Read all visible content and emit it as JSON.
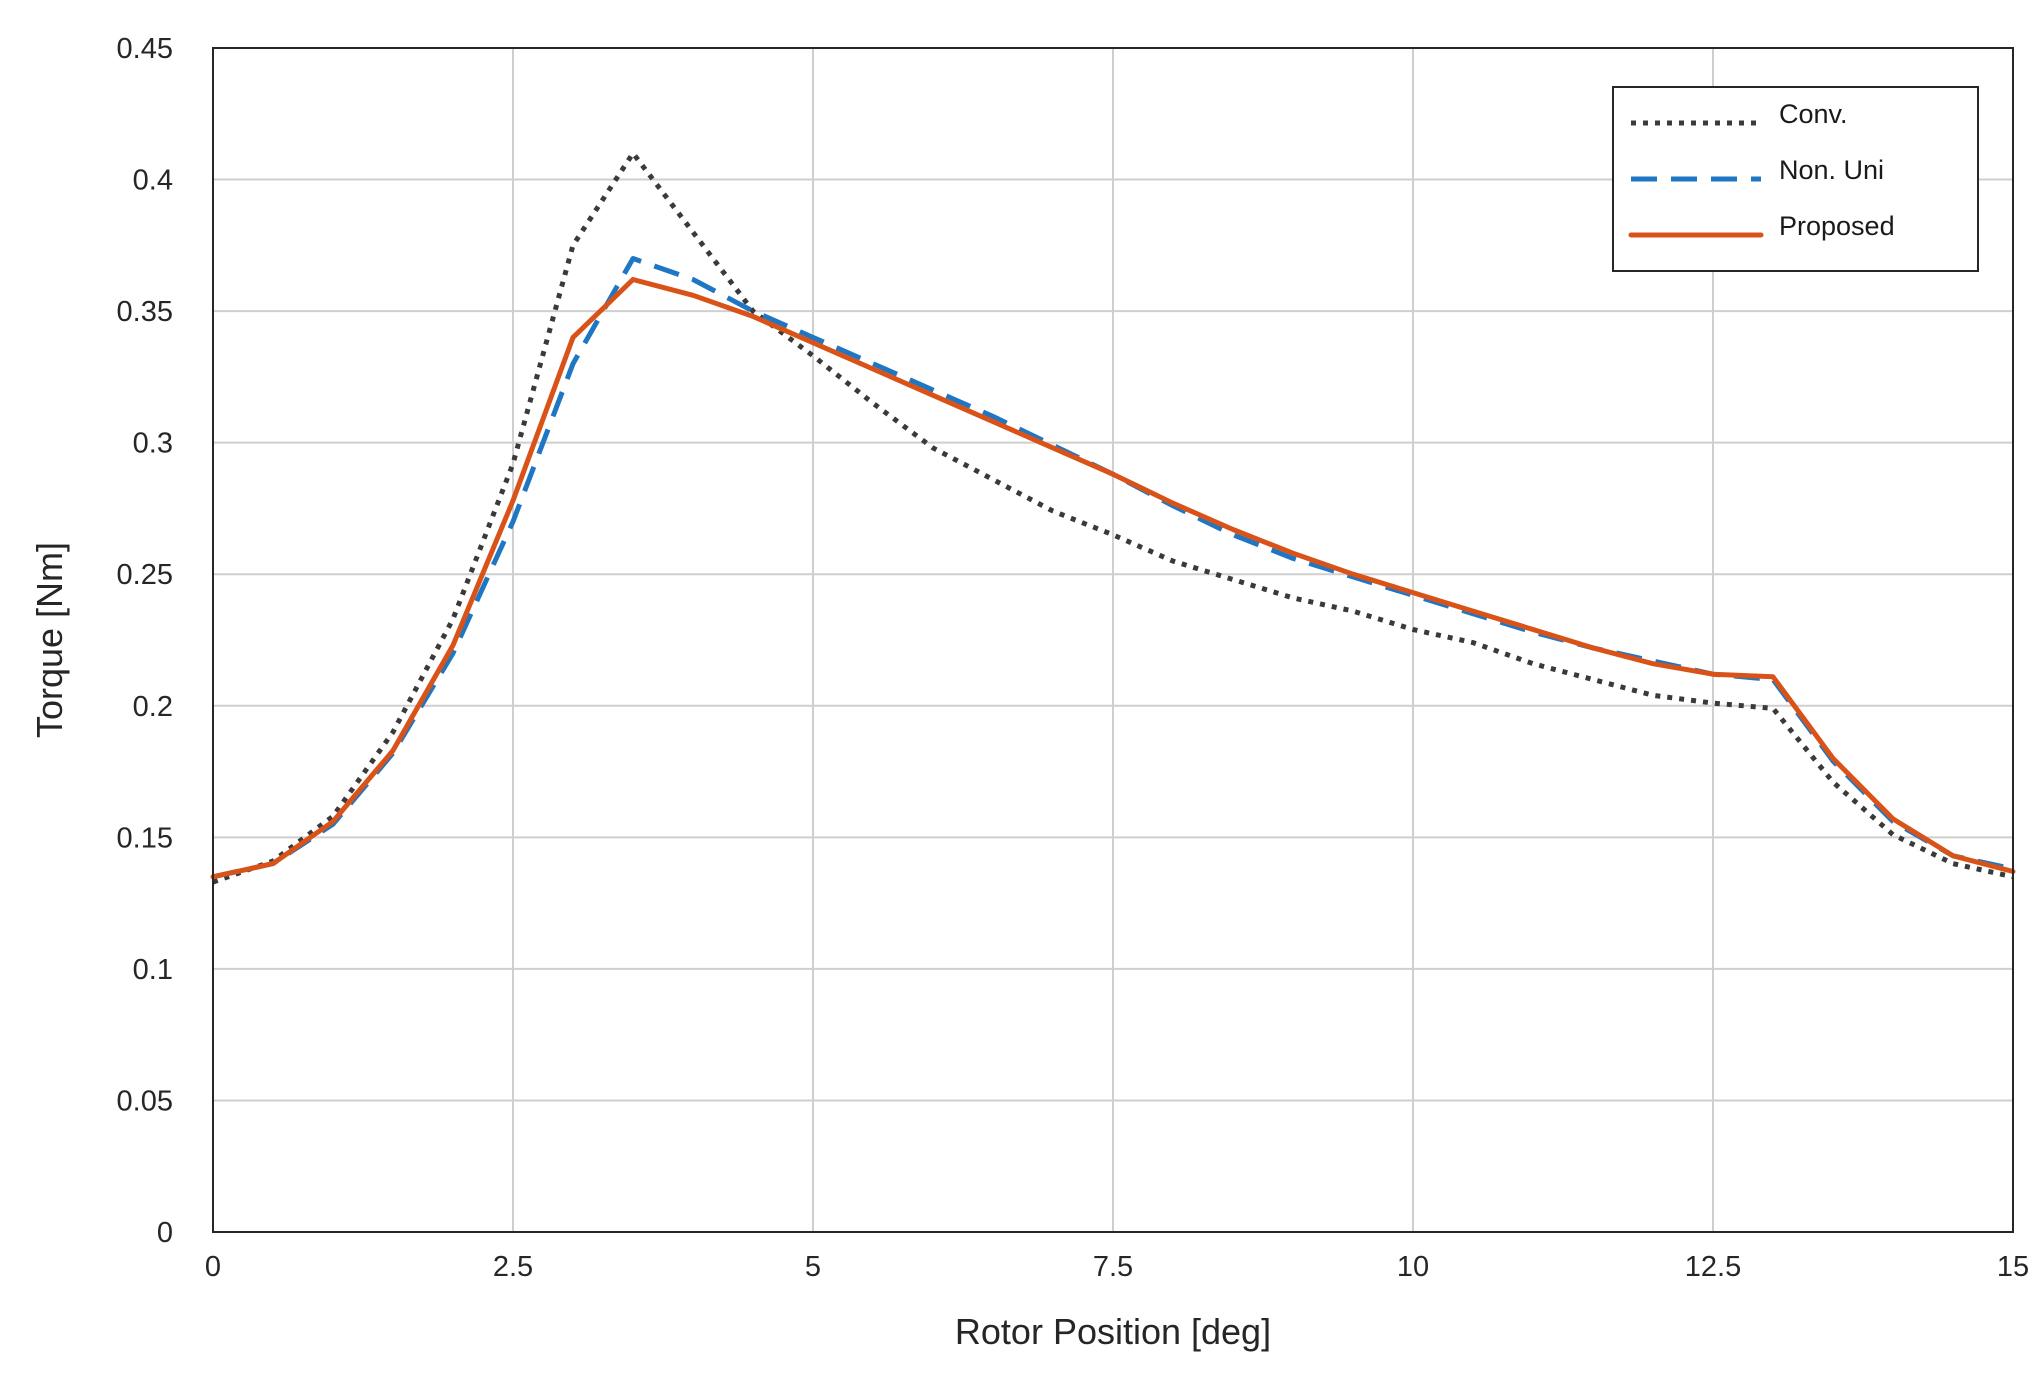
{
  "chart_data": {
    "type": "line",
    "title": "",
    "xlabel": "Rotor Position [deg]",
    "ylabel": "Torque [Nm]",
    "xlim": [
      0,
      15
    ],
    "ylim": [
      0,
      0.45
    ],
    "xticks": [
      0,
      2.5,
      5,
      7.5,
      10,
      12.5,
      15
    ],
    "xtick_labels": [
      "0",
      "2.5",
      "5",
      "7.5",
      "10",
      "12.5",
      "15"
    ],
    "yticks": [
      0,
      0.05,
      0.1,
      0.15,
      0.2,
      0.25,
      0.3,
      0.35,
      0.4,
      0.45
    ],
    "ytick_labels": [
      "0",
      "0.05",
      "0.1",
      "0.15",
      "0.2",
      "0.25",
      "0.3",
      "0.35",
      "0.4",
      "0.45"
    ],
    "grid": true,
    "legend_position": "top-right",
    "x": [
      0,
      0.5,
      1,
      1.5,
      2,
      2.5,
      3,
      3.5,
      4,
      4.5,
      5,
      5.5,
      6,
      6.5,
      7,
      7.5,
      8,
      8.5,
      9,
      9.5,
      10,
      10.5,
      11,
      11.5,
      12,
      12.5,
      13,
      13.5,
      14,
      14.5,
      15
    ],
    "series": [
      {
        "name": "Conv.",
        "color": "#3a3a3a",
        "style": "dotted",
        "values": [
          0.133,
          0.141,
          0.158,
          0.19,
          0.233,
          0.292,
          0.375,
          0.41,
          0.38,
          0.35,
          0.333,
          0.315,
          0.298,
          0.286,
          0.274,
          0.265,
          0.255,
          0.248,
          0.241,
          0.236,
          0.229,
          0.224,
          0.216,
          0.21,
          0.204,
          0.201,
          0.199,
          0.171,
          0.151,
          0.14,
          0.135
        ]
      },
      {
        "name": "Non. Uni",
        "color": "#1f77c4",
        "style": "dashed",
        "values": [
          0.135,
          0.14,
          0.155,
          0.182,
          0.22,
          0.27,
          0.33,
          0.37,
          0.362,
          0.35,
          0.34,
          0.33,
          0.32,
          0.31,
          0.299,
          0.288,
          0.276,
          0.265,
          0.256,
          0.249,
          0.242,
          0.235,
          0.228,
          0.222,
          0.217,
          0.212,
          0.21,
          0.179,
          0.156,
          0.143,
          0.138
        ]
      },
      {
        "name": "Proposed",
        "color": "#d95319",
        "style": "solid",
        "values": [
          0.135,
          0.14,
          0.156,
          0.183,
          0.223,
          0.278,
          0.34,
          0.362,
          0.356,
          0.348,
          0.338,
          0.328,
          0.318,
          0.308,
          0.298,
          0.288,
          0.277,
          0.267,
          0.258,
          0.25,
          0.243,
          0.236,
          0.229,
          0.222,
          0.216,
          0.212,
          0.211,
          0.18,
          0.157,
          0.143,
          0.137
        ]
      }
    ]
  }
}
